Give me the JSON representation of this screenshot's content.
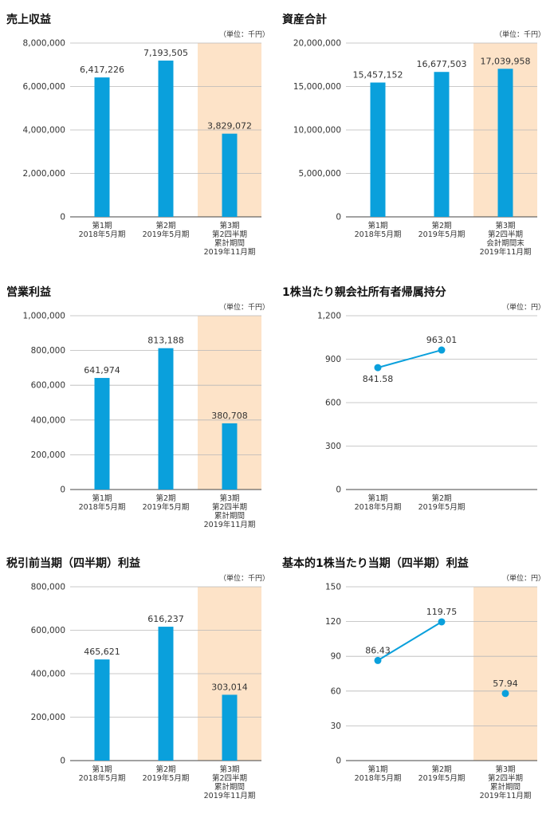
{
  "colors": {
    "bar": "#0aa0dc",
    "highlight": "#fde3c8",
    "grid": "#b8b8b8",
    "axis": "#444444"
  },
  "chart_data": [
    {
      "type": "bar",
      "title": "売上収益",
      "unit": "（単位：千円）",
      "ylim": [
        0,
        8000000
      ],
      "yticks": [
        "0",
        "2,000,000",
        "4,000,000",
        "6,000,000",
        "8,000,000"
      ],
      "categories": [
        [
          "第1期",
          "2018年5月期"
        ],
        [
          "第2期",
          "2019年5月期"
        ],
        [
          "第3期",
          "第2四半期",
          "累計期間",
          "2019年11月期"
        ]
      ],
      "values": [
        6417226,
        7193505,
        3829072
      ],
      "labels": [
        "6,417,226",
        "7,193,505",
        "3,829,072"
      ],
      "highlight_index": 2
    },
    {
      "type": "bar",
      "title": "資産合計",
      "unit": "（単位：千円）",
      "ylim": [
        0,
        20000000
      ],
      "yticks": [
        "0",
        "5,000,000",
        "10,000,000",
        "15,000,000",
        "20,000,000"
      ],
      "categories": [
        [
          "第1期",
          "2018年5月期"
        ],
        [
          "第2期",
          "2019年5月期"
        ],
        [
          "第3期",
          "第2四半期",
          "会計期間末",
          "2019年11月期"
        ]
      ],
      "values": [
        15457152,
        16677503,
        17039958
      ],
      "labels": [
        "15,457,152",
        "16,677,503",
        "17,039,958"
      ],
      "highlight_index": 2
    },
    {
      "type": "bar",
      "title": "営業利益",
      "unit": "（単位：千円）",
      "ylim": [
        0,
        1000000
      ],
      "yticks": [
        "0",
        "200,000",
        "400,000",
        "600,000",
        "800,000",
        "1,000,000"
      ],
      "categories": [
        [
          "第1期",
          "2018年5月期"
        ],
        [
          "第2期",
          "2019年5月期"
        ],
        [
          "第3期",
          "第2四半期",
          "累計期間",
          "2019年11月期"
        ]
      ],
      "values": [
        641974,
        813188,
        380708
      ],
      "labels": [
        "641,974",
        "813,188",
        "380,708"
      ],
      "highlight_index": 2
    },
    {
      "type": "line",
      "title": "1株当たり親会社所有者帰属持分",
      "unit": "（単位：円）",
      "ylim": [
        0,
        1200
      ],
      "yticks": [
        "0",
        "300",
        "600",
        "900",
        "1,200"
      ],
      "categories": [
        [
          "第1期",
          "2018年5月期"
        ],
        [
          "第2期",
          "2019年5月期"
        ],
        []
      ],
      "values": [
        841.58,
        963.01,
        null
      ],
      "labels": [
        "841.58",
        "963.01",
        ""
      ],
      "highlight_index": null
    },
    {
      "type": "bar",
      "title": "税引前当期（四半期）利益",
      "unit": "（単位：千円）",
      "ylim": [
        0,
        800000
      ],
      "yticks": [
        "0",
        "200,000",
        "400,000",
        "600,000",
        "800,000"
      ],
      "categories": [
        [
          "第1期",
          "2018年5月期"
        ],
        [
          "第2期",
          "2019年5月期"
        ],
        [
          "第3期",
          "第2四半期",
          "累計期間",
          "2019年11月期"
        ]
      ],
      "values": [
        465621,
        616237,
        303014
      ],
      "labels": [
        "465,621",
        "616,237",
        "303,014"
      ],
      "highlight_index": 2
    },
    {
      "type": "line",
      "title": "基本的1株当たり当期（四半期）利益",
      "unit": "（単位：円）",
      "ylim": [
        0,
        150
      ],
      "yticks": [
        "0",
        "30",
        "60",
        "90",
        "120",
        "150"
      ],
      "categories": [
        [
          "第1期",
          "2018年5月期"
        ],
        [
          "第2期",
          "2019年5月期"
        ],
        [
          "第3期",
          "第2四半期",
          "累計期間",
          "2019年11月期"
        ]
      ],
      "values": [
        86.43,
        119.75,
        57.94
      ],
      "labels": [
        "86.43",
        "119.75",
        "57.94"
      ],
      "connect_count": 2,
      "highlight_index": 2
    }
  ]
}
